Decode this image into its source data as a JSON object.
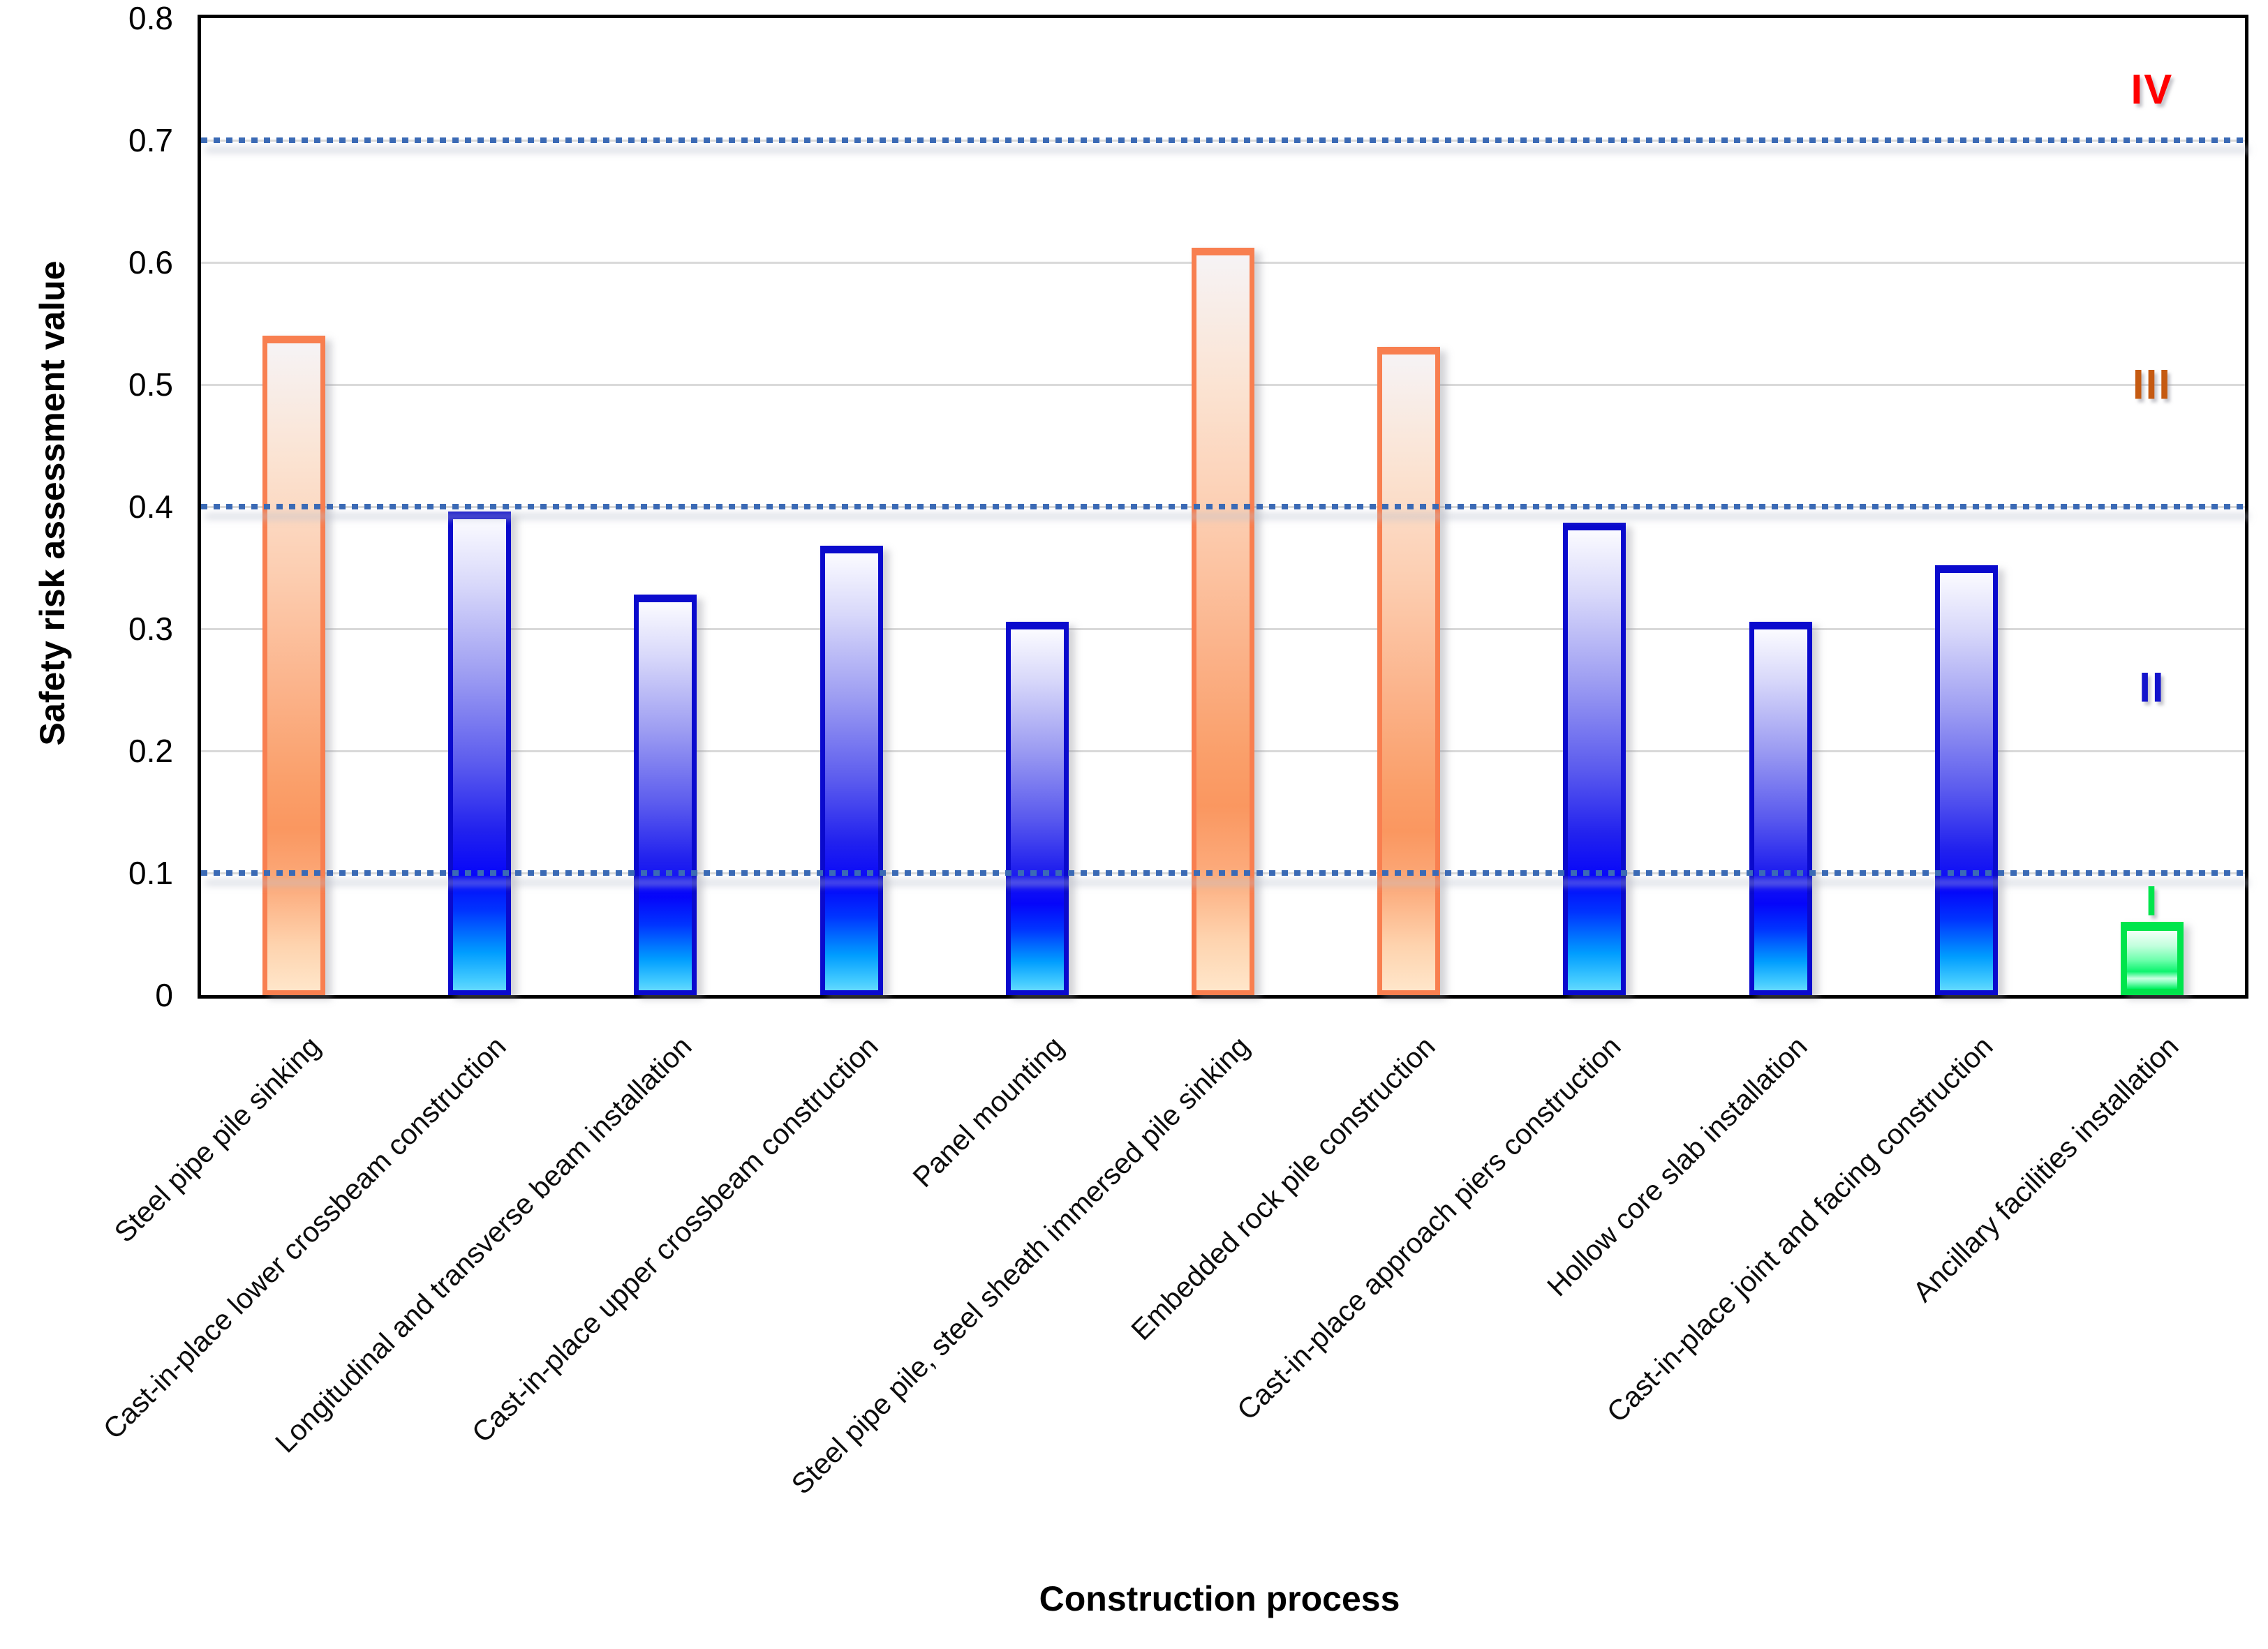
{
  "figure": {
    "background": "#ffffff"
  },
  "chart_data": {
    "type": "bar",
    "title": "",
    "xlabel": "Construction process",
    "ylabel": "Safety risk assessment value",
    "ylim": [
      0,
      0.8
    ],
    "grid": "horizontal",
    "legend_position": "none",
    "y_ticks": [
      {
        "value": 0.0,
        "label": "0"
      },
      {
        "value": 0.1,
        "label": "0.1"
      },
      {
        "value": 0.2,
        "label": "0.2"
      },
      {
        "value": 0.3,
        "label": "0.3"
      },
      {
        "value": 0.4,
        "label": "0.4"
      },
      {
        "value": 0.5,
        "label": "0.5"
      },
      {
        "value": 0.6,
        "label": "0.6"
      },
      {
        "value": 0.7,
        "label": "0.7"
      },
      {
        "value": 0.8,
        "label": "0.8"
      }
    ],
    "categories": [
      "Steel pipe pile sinking",
      "Cast-in-place lower crossbeam construction",
      "Longitudinal and transverse beam installation",
      "Cast-in-place upper crossbeam construction",
      "Panel mounting",
      "Steel pipe pile, steel sheath immersed pile sinking",
      "Embedded rock pile construction",
      "Cast-in-place approach piers construction",
      "Hollow core slab installation",
      "Cast-in-place joint and facing construction",
      "Ancillary facilities installation"
    ],
    "values": [
      0.54,
      0.396,
      0.328,
      0.368,
      0.306,
      0.612,
      0.531,
      0.387,
      0.306,
      0.352,
      0.06
    ],
    "bar_styles": [
      "orange",
      "blue",
      "blue",
      "blue",
      "blue",
      "orange",
      "orange",
      "blue",
      "blue",
      "blue",
      "green"
    ],
    "threshold_lines": {
      "values": [
        0.1,
        0.4,
        0.7
      ],
      "color": "#3b6ab5",
      "style": "dotted"
    },
    "zone_labels": [
      {
        "text": "IV",
        "value": 0.742,
        "color": "#ff0000"
      },
      {
        "text": "III",
        "value": 0.5,
        "color": "#c55a11"
      },
      {
        "text": "II",
        "value": 0.252,
        "color": "#1414cc"
      },
      {
        "text": "I",
        "value": 0.077,
        "color": "#00e54c"
      }
    ],
    "colors": {
      "orange_bar_border": "#f87f50",
      "blue_bar_border": "#0a0acd",
      "green_bar_border": "#00e54c",
      "gridline": "#d9d9d9",
      "threshold": "#3b6ab5",
      "axis_frame": "#000000"
    }
  }
}
